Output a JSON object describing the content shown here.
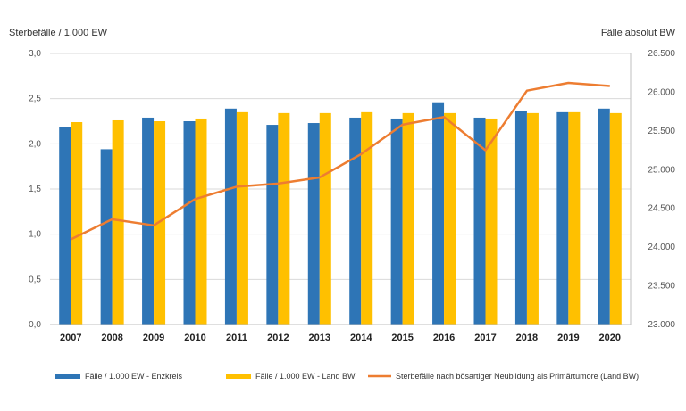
{
  "chart_data": {
    "type": "bar",
    "categories": [
      "2007",
      "2008",
      "2009",
      "2010",
      "2011",
      "2012",
      "2013",
      "2014",
      "2015",
      "2016",
      "2017",
      "2018",
      "2019",
      "2020"
    ],
    "series": [
      {
        "name": "Fälle / 1.000 EW - Enzkreis",
        "type": "bar",
        "axis": "left",
        "color": "#2e75b6",
        "values": [
          2.19,
          1.94,
          2.29,
          2.25,
          2.39,
          2.21,
          2.23,
          2.29,
          2.28,
          2.46,
          2.29,
          2.36,
          2.35,
          2.39
        ]
      },
      {
        "name": "Fälle / 1.000 EW - Land BW",
        "type": "bar",
        "axis": "left",
        "color": "#ffc000",
        "values": [
          2.24,
          2.26,
          2.25,
          2.28,
          2.35,
          2.34,
          2.34,
          2.35,
          2.34,
          2.34,
          2.28,
          2.34,
          2.35,
          2.34
        ]
      },
      {
        "name": "Sterbefälle nach bösartiger Neubildung als Primärtumore (Land BW)",
        "type": "line",
        "axis": "right",
        "color": "#ed7d31",
        "values": [
          24100,
          24360,
          24280,
          24620,
          24780,
          24820,
          24900,
          25200,
          25580,
          25680,
          25250,
          26020,
          26120,
          26080
        ]
      }
    ],
    "ylabel": "Sterbefälle / 1.000 EW",
    "y2label": "Fälle absolut BW",
    "ylim": [
      0,
      3.0
    ],
    "y2lim": [
      23000,
      26500
    ],
    "yticks": [
      "0,0",
      "0,5",
      "1,0",
      "1,5",
      "2,0",
      "2,5",
      "3,0"
    ],
    "y2ticks": [
      "23.000",
      "23.500",
      "24.000",
      "24.500",
      "25.000",
      "25.500",
      "26.000",
      "26.500"
    ],
    "grid": true,
    "legend_position": "bottom"
  }
}
